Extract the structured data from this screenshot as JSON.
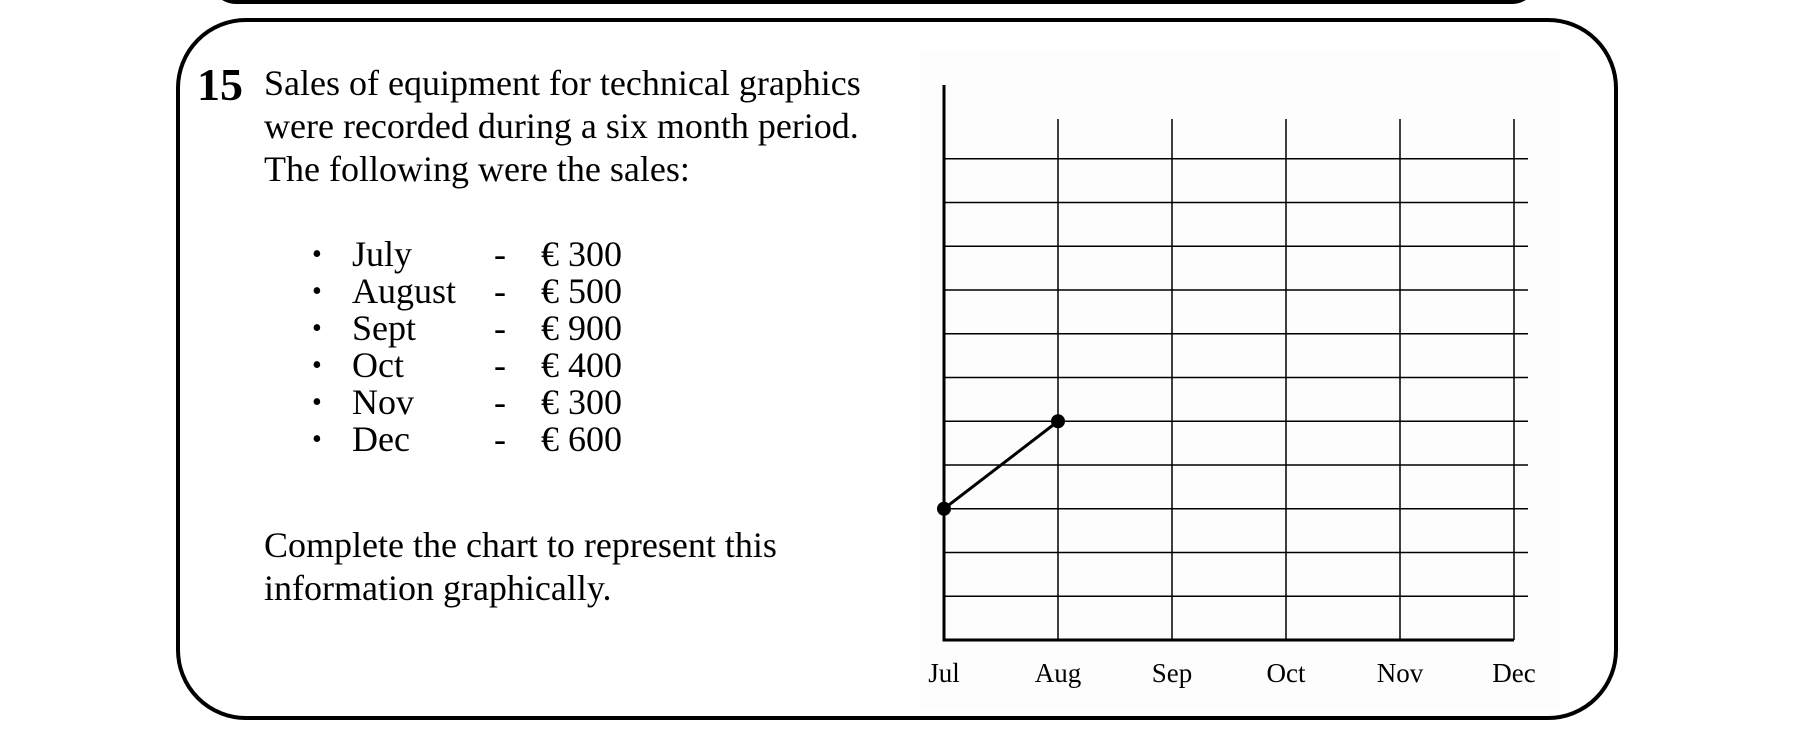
{
  "question": {
    "number": "15",
    "intro_lines": [
      "Sales of equipment for technical graphics",
      "were recorded during a six month period.",
      "The following were the sales:"
    ],
    "bullet": "•",
    "sales": [
      {
        "month": "July",
        "dash": "-",
        "amount": "€ 300"
      },
      {
        "month": "August",
        "dash": "-",
        "amount": "€ 500"
      },
      {
        "month": "Sept",
        "dash": "-",
        "amount": "€ 900"
      },
      {
        "month": "Oct",
        "dash": "-",
        "amount": "€ 400"
      },
      {
        "month": "Nov",
        "dash": "-",
        "amount": "€ 300"
      },
      {
        "month": "Dec",
        "dash": "-",
        "amount": "€ 600"
      }
    ],
    "instruction_lines": [
      "Complete the chart to represent this",
      "information graphically."
    ]
  },
  "chart_data": {
    "type": "line",
    "categories": [
      "Jul",
      "Aug",
      "Sep",
      "Oct",
      "Nov",
      "Dec"
    ],
    "ylim": [
      0,
      1100
    ],
    "grid_step": 100,
    "grid": true,
    "y_tick_labels_shown": false,
    "series": [
      {
        "points": [
          {
            "x": "Jul",
            "y": 300
          },
          {
            "x": "Aug",
            "y": 500
          }
        ]
      }
    ],
    "colors": {
      "line": "#000000",
      "grid": "#000000"
    }
  }
}
